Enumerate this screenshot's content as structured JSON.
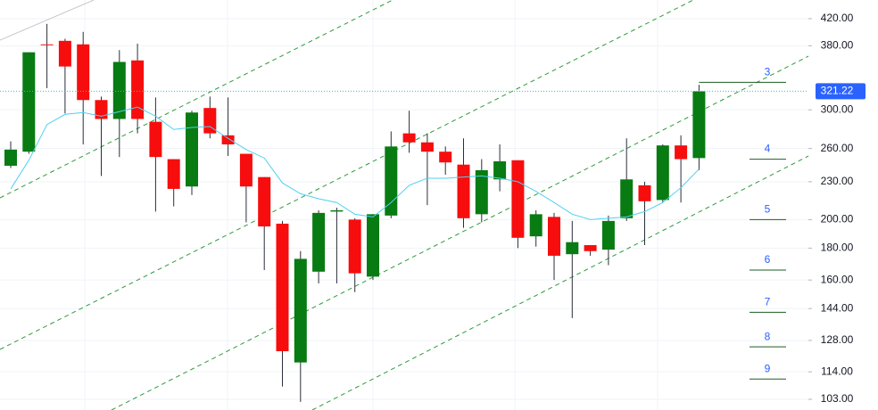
{
  "chart_data": {
    "type": "candlestick",
    "log_scale": true,
    "grid": true,
    "categories": [
      null,
      null,
      null,
      null,
      null,
      null,
      null,
      null,
      null,
      null,
      null,
      null,
      null,
      null,
      null,
      null,
      null,
      null,
      null,
      null,
      null,
      null,
      null,
      null,
      null,
      null,
      null,
      null,
      null,
      null,
      null,
      null,
      null,
      null,
      null,
      null,
      null,
      null,
      null
    ],
    "open": [
      244,
      257,
      382,
      387,
      382,
      311,
      290,
      360,
      287,
      250,
      226,
      302,
      273,
      255,
      234,
      197,
      118,
      165,
      206,
      200,
      162,
      203,
      275,
      266,
      257,
      245,
      204,
      232,
      249,
      188,
      202,
      176,
      182,
      179,
      201,
      227,
      215,
      263,
      251
    ],
    "high": [
      267,
      371,
      412,
      390,
      400,
      315,
      374,
      383,
      314,
      250,
      299,
      315,
      314,
      255,
      234,
      199,
      178,
      207,
      209,
      201,
      204,
      277,
      299,
      275,
      262,
      270,
      250,
      264,
      249,
      207,
      205,
      199,
      182,
      203,
      270,
      230,
      264,
      273,
      329
    ],
    "low": [
      242,
      255,
      325,
      296,
      264,
      235,
      252,
      275,
      206,
      210,
      219,
      270,
      253,
      198,
      166,
      108,
      102,
      158,
      158,
      153,
      160,
      201,
      256,
      211,
      236,
      194,
      198,
      222,
      180,
      181,
      160,
      139,
      175,
      169,
      199,
      182,
      213,
      213,
      240
    ],
    "close": [
      259,
      371,
      381,
      352,
      311,
      290,
      358,
      290,
      252,
      224,
      297,
      275,
      264,
      226,
      195,
      123,
      173,
      205,
      207,
      164,
      204,
      262,
      266,
      257,
      247,
      201,
      240,
      248,
      187,
      204,
      175,
      184,
      178,
      199,
      232,
      214,
      263,
      250,
      321.22
    ],
    "up_color": "#087b12",
    "down_color": "#f70d0d",
    "wick_color": "#2a2e39",
    "moving_average": {
      "color": "#4fd0ee",
      "values": [
        224,
        249,
        284,
        295,
        297,
        293,
        298,
        303,
        293,
        279,
        281,
        282,
        270,
        259,
        251,
        229,
        220,
        216,
        213,
        204,
        202,
        213,
        227,
        233,
        233,
        234,
        235,
        233,
        230,
        222,
        213,
        204,
        200,
        201,
        202,
        206,
        213,
        225,
        241
      ]
    },
    "last_price": {
      "value": 321.22,
      "label": "321.22",
      "color": "#2962ff"
    },
    "levels": [
      {
        "label": "3",
        "value": 332
      },
      {
        "label": "4",
        "value": 250
      },
      {
        "label": "5",
        "value": 200
      },
      {
        "label": "6",
        "value": 166
      },
      {
        "label": "7",
        "value": 142
      },
      {
        "label": "8",
        "value": 125
      },
      {
        "label": "9",
        "value": 111
      }
    ],
    "level_color": "#2962ff",
    "level_line_color": "#1b5e20",
    "ylim": [
      99,
      450
    ],
    "yticks": [
      {
        "value": 420,
        "label": "420.00"
      },
      {
        "value": 380,
        "label": "380.00"
      },
      {
        "value": 300,
        "label": "300.00"
      },
      {
        "value": 260,
        "label": "260.00"
      },
      {
        "value": 230,
        "label": "230.00"
      },
      {
        "value": 200,
        "label": "200.00"
      },
      {
        "value": 180,
        "label": "180.00"
      },
      {
        "value": 160,
        "label": "160.00"
      },
      {
        "value": 144,
        "label": "144.00"
      },
      {
        "value": 128,
        "label": "128.00"
      },
      {
        "value": 114,
        "label": "114.00"
      },
      {
        "value": 103,
        "label": "103.00"
      }
    ]
  }
}
